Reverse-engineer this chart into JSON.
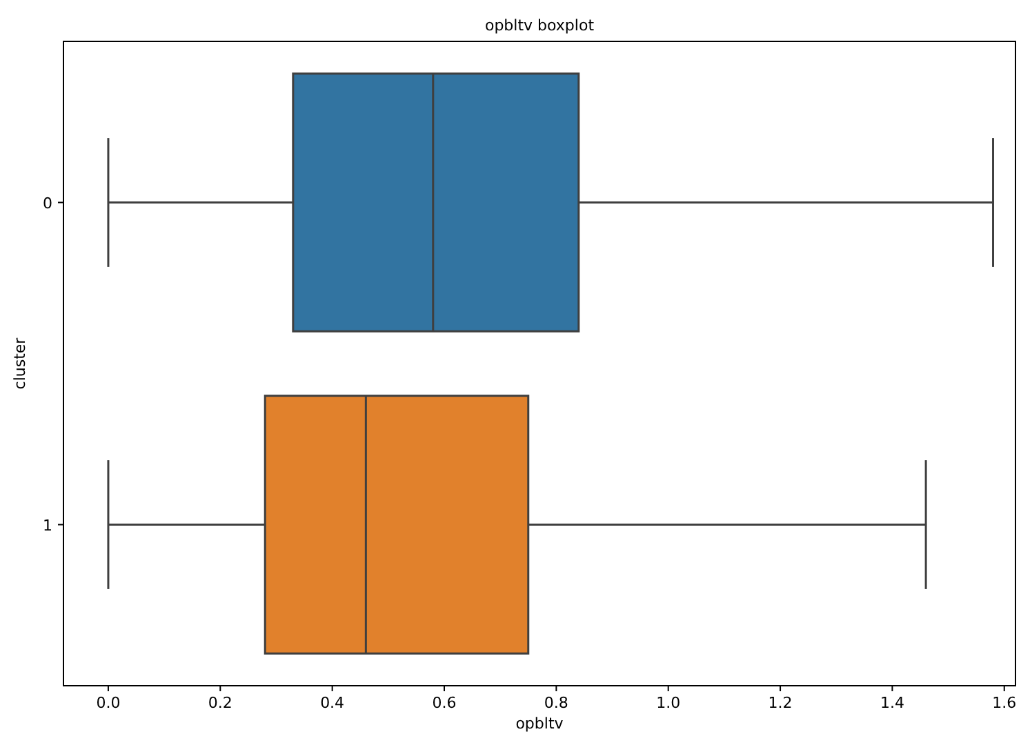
{
  "chart_data": {
    "type": "box",
    "title": "opbltv boxplot",
    "xlabel": "opbltv",
    "ylabel": "cluster",
    "orientation": "horizontal",
    "categories": [
      "0",
      "1"
    ],
    "boxes": [
      {
        "low": 0.0,
        "q1": 0.33,
        "median": 0.58,
        "q3": 0.84,
        "high": 1.58
      },
      {
        "low": 0.0,
        "q1": 0.28,
        "median": 0.46,
        "q3": 0.75,
        "high": 1.46
      }
    ],
    "colors": [
      "#3274a1",
      "#e1812c"
    ],
    "xlim": [
      -0.08,
      1.62
    ],
    "xticks": [
      {
        "value": 0,
        "label": "0.0"
      },
      {
        "value": 0.2,
        "label": "0.2"
      },
      {
        "value": 0.4,
        "label": "0.4"
      },
      {
        "value": 0.6,
        "label": "0.6"
      },
      {
        "value": 0.8,
        "label": "0.8"
      },
      {
        "value": 1,
        "label": "1.0"
      },
      {
        "value": 1.2,
        "label": "1.2"
      },
      {
        "value": 1.4,
        "label": "1.4"
      },
      {
        "value": 1.6,
        "label": "1.6"
      }
    ]
  }
}
